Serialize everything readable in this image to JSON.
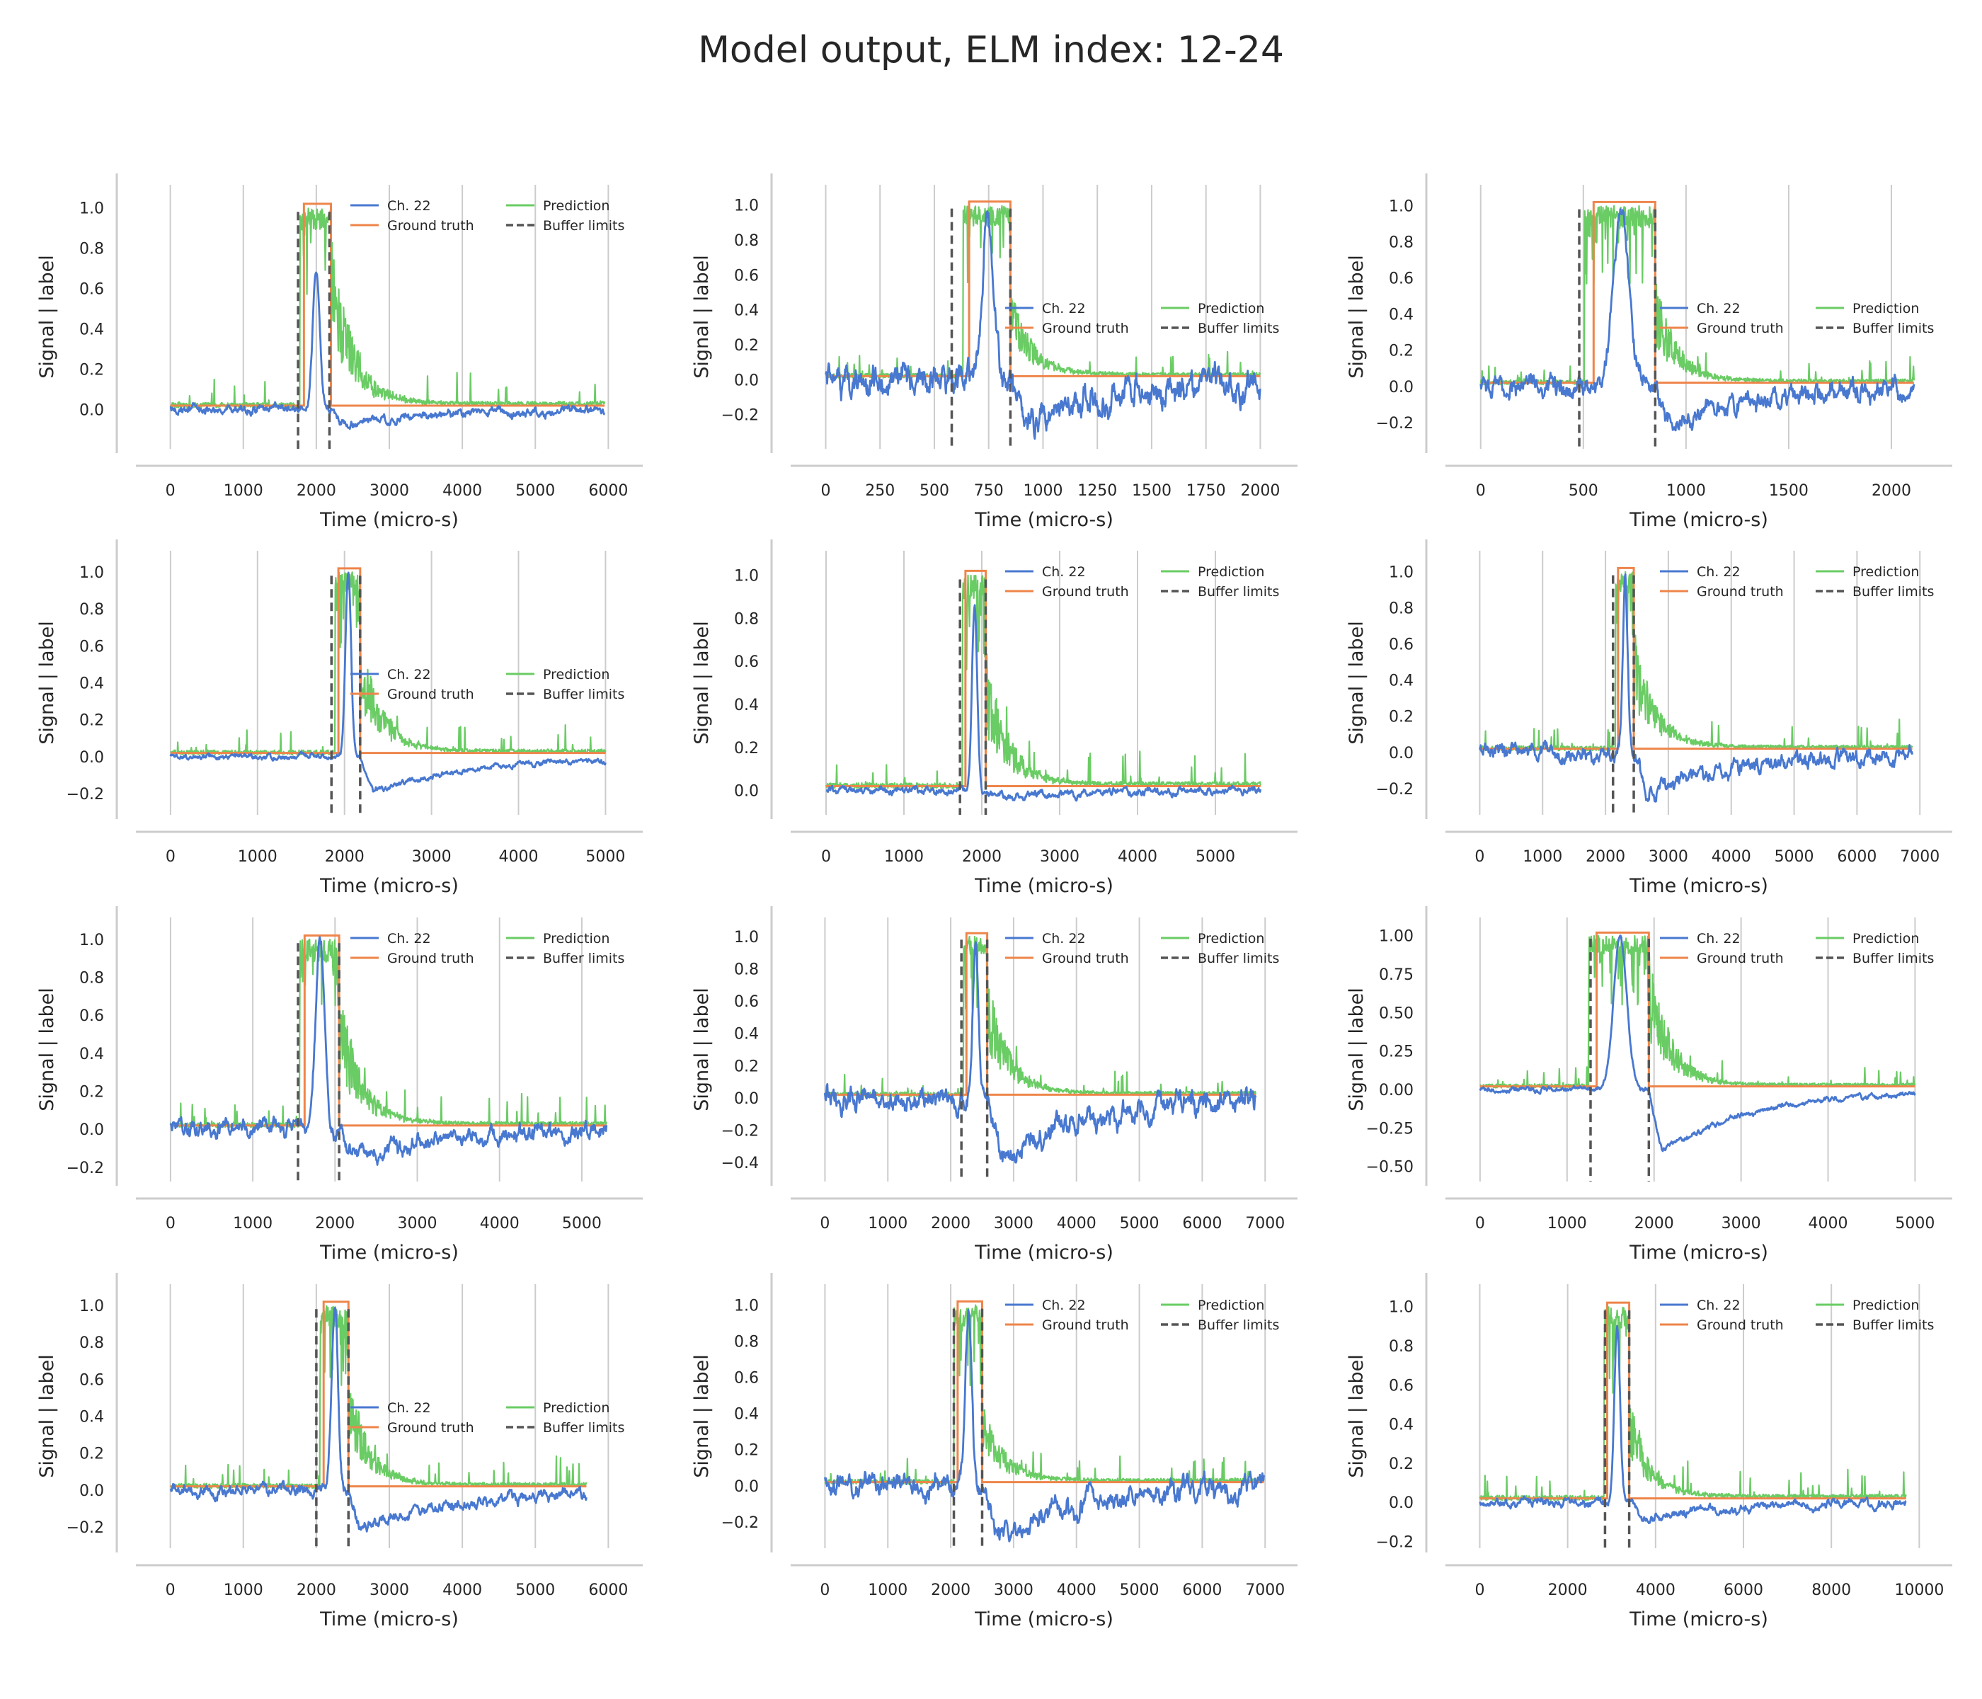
{
  "figure": {
    "title": "Model output, ELM index: 12-24",
    "colors": {
      "signal": "#4878d0",
      "truth": "#ee854a",
      "prediction": "#6acc64",
      "buffer": "#555555",
      "grid": "#cccccc",
      "axis": "#cccccc"
    }
  },
  "legend": {
    "signal": "Ch. 22",
    "truth": "Ground truth",
    "prediction": "Prediction",
    "buffer": "Buffer limits"
  },
  "chart_data": [
    {
      "type": "line",
      "xlabel": "Time (micro-s)",
      "ylabel": "Signal | label",
      "xlim": [
        -200,
        6200
      ],
      "ylim": [
        -0.18,
        1.1
      ],
      "xticks": [
        0,
        1000,
        2000,
        3000,
        4000,
        5000,
        6000
      ],
      "yticks": [
        0,
        0.2,
        0.4,
        0.6,
        0.8,
        1.0
      ],
      "ytick_labels": [
        "0.0",
        "0.2",
        "0.4",
        "0.6",
        "0.8",
        "1.0"
      ],
      "xmax": 5950,
      "on": 1830,
      "off": 2200,
      "buf_start": 1750,
      "buf_end": 2180,
      "sig_peak": 0.68,
      "sig_min": -0.09,
      "sig_noise": 0.015,
      "pred_peak": 1.0,
      "pred_tail": 0.6,
      "legend_loc": "upper-right",
      "ymarks": [
        0.02,
        1.02
      ]
    },
    {
      "type": "line",
      "xlabel": "Time (micro-s)",
      "ylabel": "Signal | label",
      "xlim": [
        -70,
        2080
      ],
      "ylim": [
        -0.38,
        1.1
      ],
      "xticks": [
        0,
        250,
        500,
        750,
        1000,
        1250,
        1500,
        1750,
        2000
      ],
      "yticks": [
        -0.2,
        0,
        0.2,
        0.4,
        0.6,
        0.8,
        1.0
      ],
      "ytick_labels": [
        "−0.2",
        "0.0",
        "0.2",
        "0.4",
        "0.6",
        "0.8",
        "1.0"
      ],
      "xmax": 2000,
      "on": 660,
      "off": 850,
      "buf_start": 580,
      "buf_end": 850,
      "sig_peak": 0.95,
      "sig_min": -0.3,
      "sig_noise": 0.06,
      "pred_peak": 1.0,
      "pred_tail": 0.35,
      "legend_loc": "center-right",
      "ymarks": [
        0.02,
        1.02
      ]
    },
    {
      "type": "line",
      "xlabel": "Time (micro-s)",
      "ylabel": "Signal | label",
      "xlim": [
        -75,
        2200
      ],
      "ylim": [
        -0.33,
        1.1
      ],
      "xticks": [
        0,
        500,
        1000,
        1500,
        2000
      ],
      "yticks": [
        -0.2,
        0,
        0.2,
        0.4,
        0.6,
        0.8,
        1.0
      ],
      "ytick_labels": [
        "−0.2",
        "0.0",
        "0.2",
        "0.4",
        "0.6",
        "0.8",
        "1.0"
      ],
      "xmax": 2110,
      "on": 550,
      "off": 850,
      "buf_start": 480,
      "buf_end": 850,
      "sig_peak": 0.95,
      "sig_min": -0.25,
      "sig_noise": 0.04,
      "pred_peak": 1.0,
      "pred_tail": 0.4,
      "legend_loc": "center-right",
      "ymarks": [
        0.02,
        1.02
      ]
    },
    {
      "type": "line",
      "xlabel": "Time (micro-s)",
      "ylabel": "Signal | label",
      "xlim": [
        -170,
        5200
      ],
      "ylim": [
        -0.3,
        1.1
      ],
      "xticks": [
        0,
        1000,
        2000,
        3000,
        4000,
        5000
      ],
      "yticks": [
        -0.2,
        0,
        0.2,
        0.4,
        0.6,
        0.8,
        1.0
      ],
      "ytick_labels": [
        "−0.2",
        "0.0",
        "0.2",
        "0.4",
        "0.6",
        "0.8",
        "1.0"
      ],
      "xmax": 5000,
      "on": 1930,
      "off": 2180,
      "buf_start": 1850,
      "buf_end": 2180,
      "sig_peak": 1.0,
      "sig_min": -0.22,
      "sig_noise": 0.01,
      "pred_peak": 1.0,
      "pred_tail": 0.45,
      "legend_loc": "center-right",
      "ymarks": [
        0.02,
        1.02
      ]
    },
    {
      "type": "line",
      "xlabel": "Time (micro-s)",
      "ylabel": "Signal | label",
      "xlim": [
        -200,
        5800
      ],
      "ylim": [
        -0.1,
        1.1
      ],
      "xticks": [
        0,
        1000,
        2000,
        3000,
        4000,
        5000
      ],
      "yticks": [
        0,
        0.2,
        0.4,
        0.6,
        0.8,
        1.0
      ],
      "ytick_labels": [
        "0.0",
        "0.2",
        "0.4",
        "0.6",
        "0.8",
        "1.0"
      ],
      "xmax": 5580,
      "on": 1790,
      "off": 2050,
      "buf_start": 1720,
      "buf_end": 2050,
      "sig_peak": 0.85,
      "sig_min": -0.03,
      "sig_noise": 0.012,
      "pred_peak": 1.0,
      "pred_tail": 0.45,
      "legend_loc": "upper-right",
      "ymarks": [
        0.02,
        1.02
      ]
    },
    {
      "type": "line",
      "xlabel": "Time (micro-s)",
      "ylabel": "Signal | label",
      "xlim": [
        -230,
        7200
      ],
      "ylim": [
        -0.33,
        1.1
      ],
      "xticks": [
        0,
        1000,
        2000,
        3000,
        4000,
        5000,
        6000,
        7000
      ],
      "yticks": [
        -0.2,
        0,
        0.2,
        0.4,
        0.6,
        0.8,
        1.0
      ],
      "ytick_labels": [
        "−0.2",
        "0.0",
        "0.2",
        "0.4",
        "0.6",
        "0.8",
        "1.0"
      ],
      "xmax": 6880,
      "on": 2200,
      "off": 2450,
      "buf_start": 2120,
      "buf_end": 2450,
      "sig_peak": 0.95,
      "sig_min": -0.25,
      "sig_noise": 0.03,
      "pred_peak": 1.0,
      "pred_tail": 0.45,
      "legend_loc": "upper-right",
      "ymarks": [
        0.02,
        1.02
      ]
    },
    {
      "type": "line",
      "xlabel": "Time (micro-s)",
      "ylabel": "Signal | label",
      "xlim": [
        -180,
        5500
      ],
      "ylim": [
        -0.26,
        1.1
      ],
      "xticks": [
        0,
        1000,
        2000,
        3000,
        4000,
        5000
      ],
      "yticks": [
        -0.2,
        0,
        0.2,
        0.4,
        0.6,
        0.8,
        1.0
      ],
      "ytick_labels": [
        "−0.2",
        "0.0",
        "0.2",
        "0.4",
        "0.6",
        "0.8",
        "1.0"
      ],
      "xmax": 5300,
      "on": 1630,
      "off": 2050,
      "buf_start": 1550,
      "buf_end": 2050,
      "sig_peak": 1.0,
      "sig_min": -0.18,
      "sig_noise": 0.03,
      "pred_peak": 1.0,
      "pred_tail": 0.5,
      "legend_loc": "upper-right",
      "ymarks": [
        0.02,
        1.02
      ]
    },
    {
      "type": "line",
      "xlabel": "Time (micro-s)",
      "ylabel": "Signal | label",
      "xlim": [
        -230,
        7200
      ],
      "ylim": [
        -0.5,
        1.1
      ],
      "xticks": [
        0,
        1000,
        2000,
        3000,
        4000,
        5000,
        6000,
        7000
      ],
      "yticks": [
        -0.4,
        -0.2,
        0,
        0.2,
        0.4,
        0.6,
        0.8,
        1.0
      ],
      "ytick_labels": [
        "−0.4",
        "−0.2",
        "0.0",
        "0.2",
        "0.4",
        "0.6",
        "0.8",
        "1.0"
      ],
      "xmax": 6850,
      "on": 2250,
      "off": 2580,
      "buf_start": 2170,
      "buf_end": 2580,
      "sig_peak": 0.95,
      "sig_min": -0.42,
      "sig_noise": 0.05,
      "pred_peak": 1.0,
      "pred_tail": 0.5,
      "legend_loc": "upper-right",
      "ymarks": [
        0.02,
        1.02
      ]
    },
    {
      "type": "line",
      "xlabel": "Time (micro-s)",
      "ylabel": "Signal | label",
      "xlim": [
        -170,
        5200
      ],
      "ylim": [
        -0.58,
        1.1
      ],
      "xticks": [
        0,
        1000,
        2000,
        3000,
        4000,
        5000
      ],
      "yticks": [
        -0.5,
        -0.25,
        0,
        0.25,
        0.5,
        0.75,
        1.0
      ],
      "ytick_labels": [
        "−0.50",
        "−0.25",
        "0.00",
        "0.25",
        "0.50",
        "0.75",
        "1.00"
      ],
      "xmax": 5000,
      "on": 1340,
      "off": 1940,
      "buf_start": 1270,
      "buf_end": 1940,
      "sig_peak": 1.0,
      "sig_min": -0.45,
      "sig_noise": 0.012,
      "pred_peak": 1.0,
      "pred_tail": 0.6,
      "legend_loc": "upper-right",
      "ymarks": [
        0.02,
        1.02
      ]
    },
    {
      "type": "line",
      "xlabel": "Time (micro-s)",
      "ylabel": "Signal | label",
      "xlim": [
        -200,
        6200
      ],
      "ylim": [
        -0.3,
        1.1
      ],
      "xticks": [
        0,
        1000,
        2000,
        3000,
        4000,
        5000,
        6000
      ],
      "yticks": [
        -0.2,
        0,
        0.2,
        0.4,
        0.6,
        0.8,
        1.0
      ],
      "ytick_labels": [
        "−0.2",
        "0.0",
        "0.2",
        "0.4",
        "0.6",
        "0.8",
        "1.0"
      ],
      "xmax": 5700,
      "on": 2100,
      "off": 2440,
      "buf_start": 2000,
      "buf_end": 2440,
      "sig_peak": 1.0,
      "sig_min": -0.25,
      "sig_noise": 0.02,
      "pred_peak": 1.0,
      "pred_tail": 0.45,
      "legend_loc": "center-right",
      "ymarks": [
        0.02,
        1.02
      ]
    },
    {
      "type": "line",
      "xlabel": "Time (micro-s)",
      "ylabel": "Signal | label",
      "xlim": [
        -230,
        7200
      ],
      "ylim": [
        -0.33,
        1.1
      ],
      "xticks": [
        0,
        1000,
        2000,
        3000,
        4000,
        5000,
        6000,
        7000
      ],
      "yticks": [
        -0.2,
        0,
        0.2,
        0.4,
        0.6,
        0.8,
        1.0
      ],
      "ytick_labels": [
        "−0.2",
        "0.0",
        "0.2",
        "0.4",
        "0.6",
        "0.8",
        "1.0"
      ],
      "xmax": 6980,
      "on": 2110,
      "off": 2500,
      "buf_start": 2050,
      "buf_end": 2500,
      "sig_peak": 1.0,
      "sig_min": -0.3,
      "sig_noise": 0.04,
      "pred_peak": 1.0,
      "pred_tail": 0.3,
      "legend_loc": "upper-right",
      "ymarks": [
        0.02,
        1.02
      ]
    },
    {
      "type": "line",
      "xlabel": "Time (micro-s)",
      "ylabel": "Signal | label",
      "xlim": [
        -330,
        10300
      ],
      "ylim": [
        -0.22,
        1.1
      ],
      "xticks": [
        0,
        2000,
        4000,
        6000,
        8000,
        10000
      ],
      "yticks": [
        -0.2,
        0,
        0.2,
        0.4,
        0.6,
        0.8,
        1.0
      ],
      "ytick_labels": [
        "−0.2",
        "0.0",
        "0.2",
        "0.4",
        "0.6",
        "0.8",
        "1.0"
      ],
      "xmax": 9700,
      "on": 2900,
      "off": 3400,
      "buf_start": 2850,
      "buf_end": 3400,
      "sig_peak": 0.9,
      "sig_min": -0.1,
      "sig_noise": 0.015,
      "pred_peak": 1.0,
      "pred_tail": 0.35,
      "legend_loc": "upper-right",
      "ymarks": [
        0.02,
        1.02
      ]
    }
  ]
}
